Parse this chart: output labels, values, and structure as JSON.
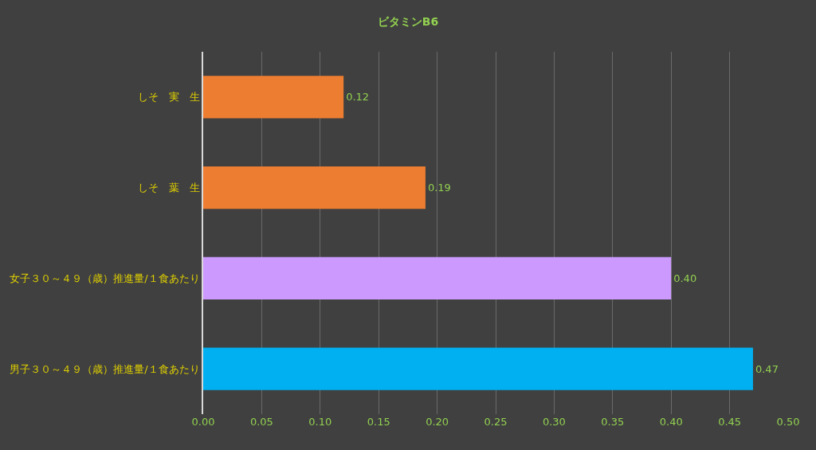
{
  "chart_data": {
    "type": "bar",
    "orientation": "horizontal",
    "title": "ビタミンB6",
    "categories": [
      "しそ　実　生",
      "しそ　葉　生",
      "女子３０～４９（歳）推進量/１食あたり",
      "男子３０～４９（歳）推進量/１食あたり"
    ],
    "values": [
      0.12,
      0.19,
      0.4,
      0.47
    ],
    "colors": [
      "#ed7d31",
      "#ed7d31",
      "#cc99ff",
      "#00b0f0"
    ],
    "value_labels": [
      "0.12",
      "0.19",
      "0.40",
      "0.47"
    ],
    "xlim": [
      0,
      0.5
    ],
    "xticks": [
      {
        "value": 0,
        "label": "0.00"
      },
      {
        "value": 0.05,
        "label": "0.05"
      },
      {
        "value": 0.1,
        "label": "0.10"
      },
      {
        "value": 0.15,
        "label": "0.15"
      },
      {
        "value": 0.2,
        "label": "0.20"
      },
      {
        "value": 0.25,
        "label": "0.25"
      },
      {
        "value": 0.3,
        "label": "0.30"
      },
      {
        "value": 0.35,
        "label": "0.35"
      },
      {
        "value": 0.4,
        "label": "0.40"
      },
      {
        "value": 0.45,
        "label": "0.45"
      },
      {
        "value": 0.5,
        "label": "0.50"
      }
    ],
    "grid": "x"
  }
}
